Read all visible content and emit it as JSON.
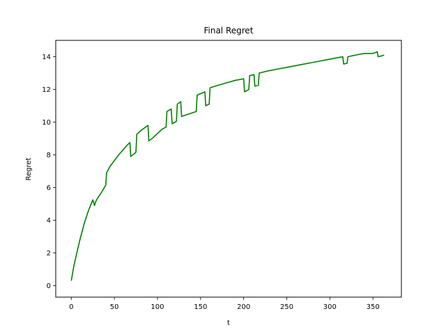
{
  "chart_data": {
    "type": "line",
    "title": "Final Regret",
    "xlabel": "t",
    "ylabel": "Regret",
    "xlim": [
      -18,
      383
    ],
    "ylim": [
      -0.7,
      15.0
    ],
    "xticks": [
      0,
      50,
      100,
      150,
      200,
      250,
      300,
      350
    ],
    "yticks": [
      0,
      2,
      4,
      6,
      8,
      10,
      12,
      14
    ],
    "grid": false,
    "legend": "none",
    "series": [
      {
        "color": "#008000",
        "x": [
          0,
          3,
          6,
          10,
          15,
          20,
          25,
          27,
          28,
          30,
          35,
          40,
          41,
          45,
          50,
          55,
          60,
          65,
          68,
          69,
          75,
          76,
          80,
          85,
          89,
          90,
          95,
          100,
          105,
          110,
          111,
          116,
          117,
          122,
          123,
          127,
          128,
          145,
          146,
          155,
          156,
          160,
          161,
          170,
          180,
          190,
          200,
          201,
          206,
          207,
          212,
          213,
          217,
          218,
          230,
          240,
          250,
          260,
          270,
          280,
          290,
          300,
          310,
          315,
          316,
          320,
          321,
          330,
          340,
          350,
          355,
          356,
          360,
          363
        ],
        "y": [
          0.3,
          1.2,
          1.9,
          2.8,
          3.8,
          4.6,
          5.25,
          4.9,
          5.1,
          5.3,
          5.7,
          6.15,
          6.9,
          7.3,
          7.65,
          8.0,
          8.3,
          8.6,
          8.75,
          7.9,
          8.15,
          9.25,
          9.45,
          9.65,
          9.8,
          8.85,
          9.05,
          9.3,
          9.55,
          9.7,
          10.65,
          10.8,
          9.9,
          10.05,
          11.1,
          11.25,
          10.35,
          10.65,
          11.65,
          11.85,
          11.0,
          11.1,
          12.1,
          12.25,
          12.4,
          12.55,
          12.65,
          11.85,
          12.0,
          12.85,
          12.9,
          12.2,
          12.25,
          13.0,
          13.15,
          13.25,
          13.35,
          13.45,
          13.55,
          13.65,
          13.75,
          13.85,
          13.95,
          14.0,
          13.55,
          13.6,
          14.0,
          14.1,
          14.2,
          14.2,
          14.3,
          14.0,
          14.05,
          14.1
        ]
      }
    ]
  }
}
